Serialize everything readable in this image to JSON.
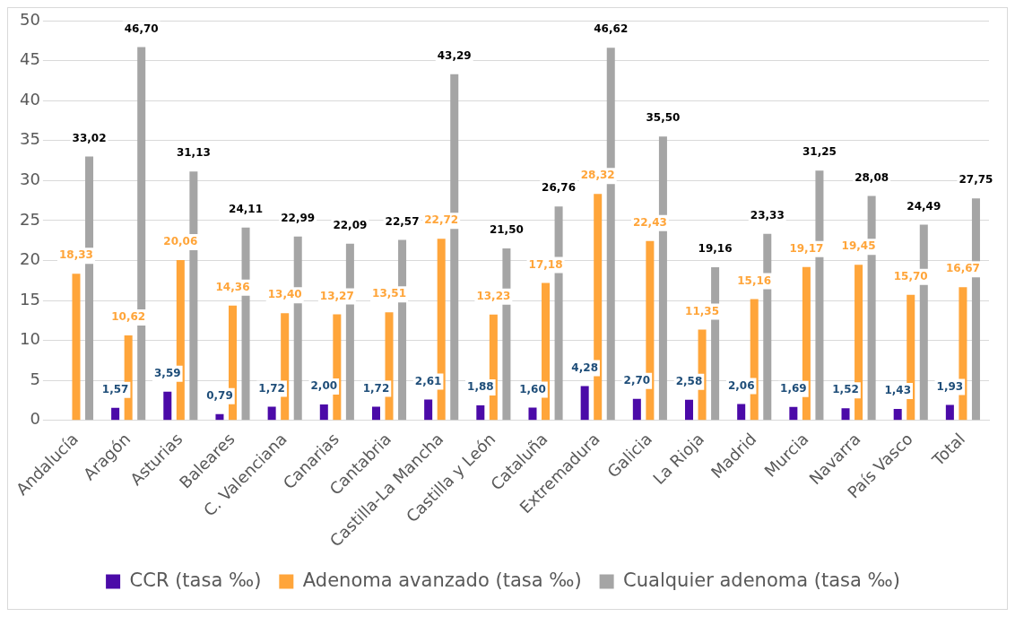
{
  "chart_data": {
    "type": "bar",
    "categories": [
      "Andalucía",
      "Aragón",
      "Asturias",
      "Baleares",
      "C. Valenciana",
      "Canarias",
      "Cantabria",
      "Castilla-La Mancha",
      "Castilla y León",
      "Cataluña",
      "Extremadura",
      "Galicia",
      "La Rioja",
      "Madrid",
      "Murcia",
      "Navarra",
      "País Vasco",
      "Total"
    ],
    "series": [
      {
        "name": "CCR (tasa ‰)",
        "color": "#4b0aa8",
        "values": [
          null,
          1.57,
          3.59,
          0.79,
          1.72,
          2.0,
          1.72,
          2.61,
          1.88,
          1.6,
          4.28,
          2.7,
          2.58,
          2.06,
          1.69,
          1.52,
          1.43,
          1.93
        ],
        "value_labels": [
          null,
          "1,57",
          "3,59",
          "0,79",
          "1,72",
          "2,00",
          "1,72",
          "2,61",
          "1,88",
          "1,60",
          "4,28",
          "2,70",
          "2,58",
          "2,06",
          "1,69",
          "1,52",
          "1,43",
          "1,93"
        ]
      },
      {
        "name": "Adenoma avanzado (tasa ‰)",
        "color": "#ffa53a",
        "values": [
          18.33,
          10.62,
          20.06,
          14.36,
          13.4,
          13.27,
          13.51,
          22.72,
          13.23,
          17.18,
          28.32,
          22.43,
          11.35,
          15.16,
          19.17,
          19.45,
          15.7,
          16.67
        ],
        "value_labels": [
          "18,33",
          "10,62",
          "20,06",
          "14,36",
          "13,40",
          "13,27",
          "13,51",
          "22,72",
          "13,23",
          "17,18",
          "28,32",
          "22,43",
          "11,35",
          "15,16",
          "19,17",
          "19,45",
          "15,70",
          "16,67"
        ]
      },
      {
        "name": "Cualquier adenoma (tasa ‰)",
        "color": "#a5a5a5",
        "values": [
          33.02,
          46.7,
          31.13,
          24.11,
          22.99,
          22.09,
          22.57,
          43.29,
          21.5,
          26.76,
          46.62,
          35.5,
          19.16,
          23.33,
          31.25,
          28.08,
          24.49,
          27.75
        ],
        "value_labels": [
          "33,02",
          "46,70",
          "31,13",
          "24,11",
          "22,99",
          "22,09",
          "22,57",
          "43,29",
          "21,50",
          "26,76",
          "46,62",
          "35,50",
          "19,16",
          "23,33",
          "31,25",
          "28,08",
          "24,49",
          "27,75"
        ]
      }
    ],
    "ylim": [
      0,
      50
    ],
    "yticks": [
      0,
      5,
      10,
      15,
      20,
      25,
      30,
      35,
      40,
      45,
      50
    ],
    "grid": "y",
    "legend": "bottom"
  }
}
